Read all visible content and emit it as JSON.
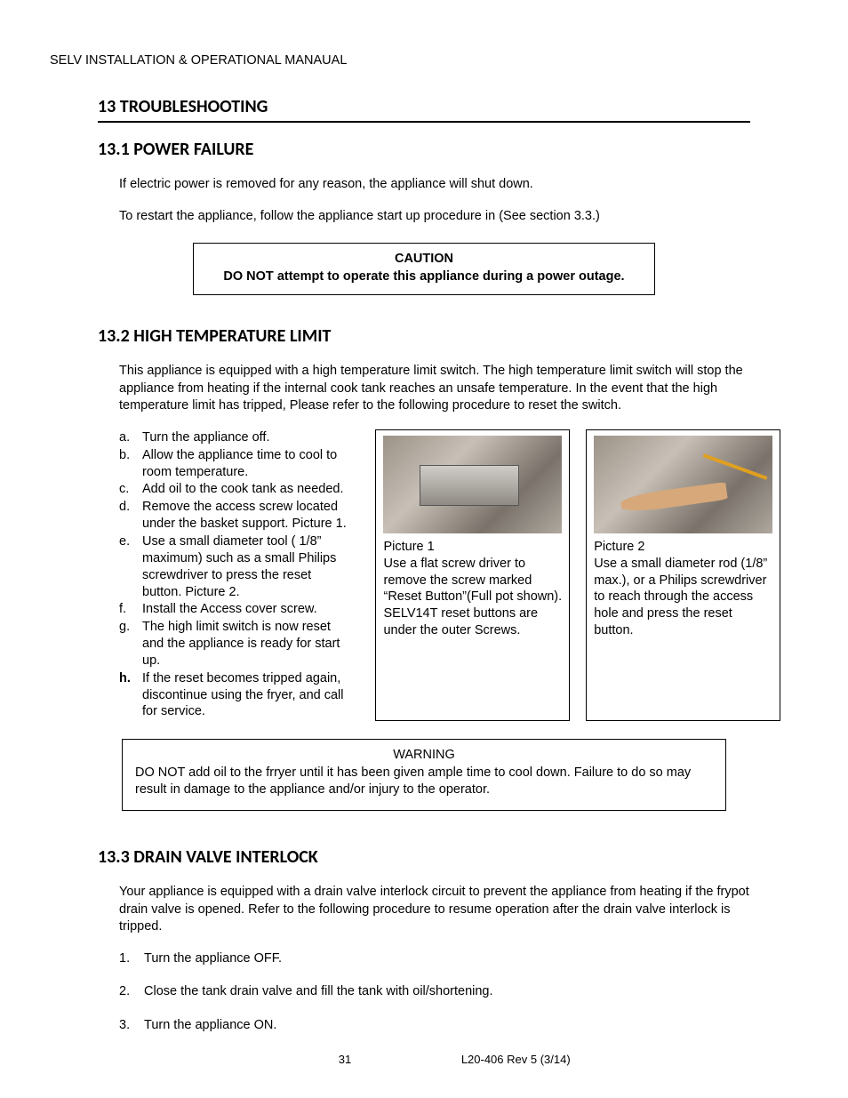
{
  "header": "SELV INSTALLATION & OPERATIONAL MANAUAL",
  "s13": {
    "title": "13  TROUBLESHOOTING",
    "s1": {
      "title": "13.1 POWER FAILURE",
      "p1": "If electric power is removed for any reason, the appliance will shut down.",
      "p2": "To restart the appliance, follow the appliance start up procedure in (See section 3.3.)",
      "caution_title": "CAUTION",
      "caution_body": "DO NOT attempt to operate this appliance during a power outage."
    },
    "s2": {
      "title": "13.2 HIGH TEMPERATURE LIMIT",
      "intro": "This appliance is equipped with a high temperature limit switch.  The high temperature limit switch will stop the appliance from heating if the internal cook tank reaches an unsafe temperature. In the event that the high temperature limit has tripped, Please refer to the following procedure to reset the switch.",
      "steps": [
        {
          "l": "a.",
          "t": "Turn the appliance off.",
          "bold": false
        },
        {
          "l": "b.",
          "t": "Allow the appliance time to cool to room temperature.",
          "bold": false
        },
        {
          "l": "c.",
          "t": "Add oil to the cook tank as needed.",
          "bold": false
        },
        {
          "l": "d.",
          "t": "Remove the access screw located under the basket support. Picture 1.",
          "bold": false
        },
        {
          "l": "e.",
          "t": " Use a small diameter tool ( 1/8” maximum) such as a small Philips screwdriver to press the reset button. Picture 2.",
          "bold": false
        },
        {
          "l": "f.",
          "t": "Install the Access cover screw.",
          "bold": false
        },
        {
          "l": "g.",
          "t": "The high limit switch is now reset and the appliance is ready for start up.",
          "bold": false
        },
        {
          "l": "h.",
          "t": "If the reset becomes tripped again, discontinue using the fryer, and call for service.",
          "bold": true
        }
      ],
      "pic1_label": "Picture 1",
      "pic1_caption": "Use a flat screw driver to remove the screw marked “Reset Button”(Full pot shown). SELV14T reset buttons are under the outer Screws.",
      "pic2_label": "Picture 2",
      "pic2_caption": "Use a small diameter rod (1/8” max.), or a Philips screwdriver to reach through the access hole and press the reset button.",
      "warn_title": "WARNING",
      "warn_body": "DO NOT add oil to the frryer until it has been given ample time to cool down.  Failure to do so may result in damage to the appliance and/or injury to the operator."
    },
    "s3": {
      "title": "13.3 DRAIN VALVE INTERLOCK",
      "intro": "Your appliance is equipped with a drain valve interlock circuit to prevent the appliance from heating if the frypot drain valve is opened. Refer to the following procedure to resume operation after the drain valve interlock is tripped.",
      "steps": [
        {
          "n": "1.",
          "t": "Turn the appliance OFF."
        },
        {
          "n": "2.",
          "t": "Close the tank drain valve and fill the tank with oil/shortening."
        },
        {
          "n": "3.",
          "t": "Turn the appliance ON."
        }
      ]
    }
  },
  "footer": {
    "page": "31",
    "rev": "L20-406   Rev 5 (3/14)"
  }
}
